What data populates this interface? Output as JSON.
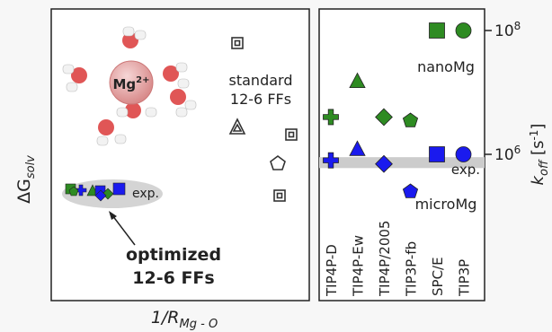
{
  "left_panel": {
    "ylabel_main": "ΔG",
    "ylabel_sub": "solv",
    "xlabel_main": "1/R",
    "xlabel_sub": "Mg - O",
    "ion_label": "Mg",
    "ion_charge": "2+",
    "standard_label_line1": "standard",
    "standard_label_line2": "12-6 FFs",
    "exp_label": "exp.",
    "optimized_label_line1": "optimized",
    "optimized_label_line2": "12-6 FFs"
  },
  "right_panel": {
    "ylabel_main": "k",
    "ylabel_sub": "off",
    "ylabel_unit": "[s",
    "ylabel_unit_exp": "-1",
    "ylabel_unit_close": "]",
    "ytick_1e8_base": "10",
    "ytick_1e8_exp": "8",
    "ytick_1e6_base": "10",
    "ytick_1e6_exp": "6",
    "exp_label": "exp.",
    "nano_label": "nanoMg",
    "micro_label": "microMg"
  },
  "colors": {
    "nano": "#2e8b22",
    "micro": "#1a1aee",
    "standard": "#333333",
    "exp_band": "#cccccc",
    "ion": "#e8a0a0"
  },
  "chart_data": {
    "type": "scatter",
    "yscale": "log",
    "ylabel": "k_off [s^-1]",
    "ytick_labels": [
      "10^6",
      "10^8"
    ],
    "categories": [
      "TIP4P-D",
      "TIP4P-Ew",
      "TIP4P/2005",
      "TIP3P-fb",
      "SPC/E",
      "TIP3P"
    ],
    "markers": [
      "plus",
      "triangle",
      "diamond",
      "pentagon",
      "square",
      "circle"
    ],
    "series": [
      {
        "name": "nanoMg",
        "values": [
          4000000.0,
          15000000.0,
          4000000.0,
          3500000.0,
          100000000.0,
          100000000.0
        ]
      },
      {
        "name": "microMg",
        "values": [
          800000.0,
          1200000.0,
          700000.0,
          250000.0,
          1000000.0,
          1000000.0
        ]
      }
    ],
    "exp_band": [
      600000.0,
      900000.0
    ]
  }
}
